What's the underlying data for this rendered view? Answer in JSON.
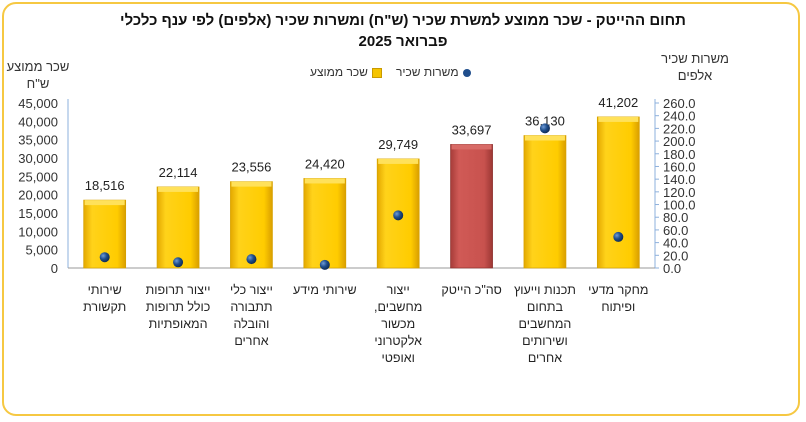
{
  "chart_data": {
    "type": "bar",
    "title": "תחום ההייטק -  שכר ממוצע למשרת שכיר (ש\"ח) ומשרות שכיר (אלפים) לפי ענף כלכלי",
    "subtitle": "פברואר 2025",
    "ylabel_left": [
      "שכר ממוצע",
      "ש\"ח"
    ],
    "ylabel_right": [
      "משרות שכיר",
      "אלפים"
    ],
    "legend": [
      "משרות שכיר",
      "שכר ממוצע"
    ],
    "legend_placement": "top",
    "categories": [
      [
        "שירותי",
        "תקשורת"
      ],
      [
        "ייצור תרופות",
        "כולל תרופות",
        "המאופתיות"
      ],
      [
        "ייצור כלי",
        "תתבורה",
        "והובלה",
        "אחרים"
      ],
      [
        "שירותי מידע"
      ],
      [
        "ייצור",
        "מחשבים,",
        "מכשור",
        "אלקטרוני",
        "ואופטי"
      ],
      [
        "סה\"כ הייטק"
      ],
      [
        "תכנות וייעוץ",
        "בתחום",
        "המחשבים",
        "ושירותים",
        "אחרים"
      ],
      [
        "מחקר מדעי",
        "ופיתוח"
      ]
    ],
    "series": [
      {
        "name": "שכר ממוצע",
        "axis": "left",
        "type": "bar",
        "color": "#f5c400",
        "values": [
          18516,
          22114,
          23556,
          24420,
          29749,
          33697,
          36130,
          41202
        ],
        "labels": [
          "18,516",
          "22,114",
          "23,556",
          "24,420",
          "29,749",
          "33,697",
          "36,130",
          "41,202"
        ],
        "highlight_index": 5,
        "highlight_color": "#c0504d"
      },
      {
        "name": "משרות שכיר",
        "axis": "right",
        "type": "scatter",
        "color": "#1f4e8c",
        "values": [
          17,
          9,
          14,
          5,
          83,
          null,
          220,
          49
        ]
      }
    ],
    "ylim_left": [
      0,
      45000
    ],
    "yticks_left": [
      "0",
      "5,000",
      "10,000",
      "15,000",
      "20,000",
      "25,000",
      "30,000",
      "35,000",
      "40,000",
      "45,000"
    ],
    "ylim_right": [
      0,
      260
    ],
    "yticks_right": [
      "0.0",
      "20.0",
      "40.0",
      "60.0",
      "80.0",
      "100.0",
      "120.0",
      "140.0",
      "160.0",
      "180.0",
      "200.0",
      "220.0",
      "240.0",
      "260.0"
    ],
    "grid": false
  }
}
